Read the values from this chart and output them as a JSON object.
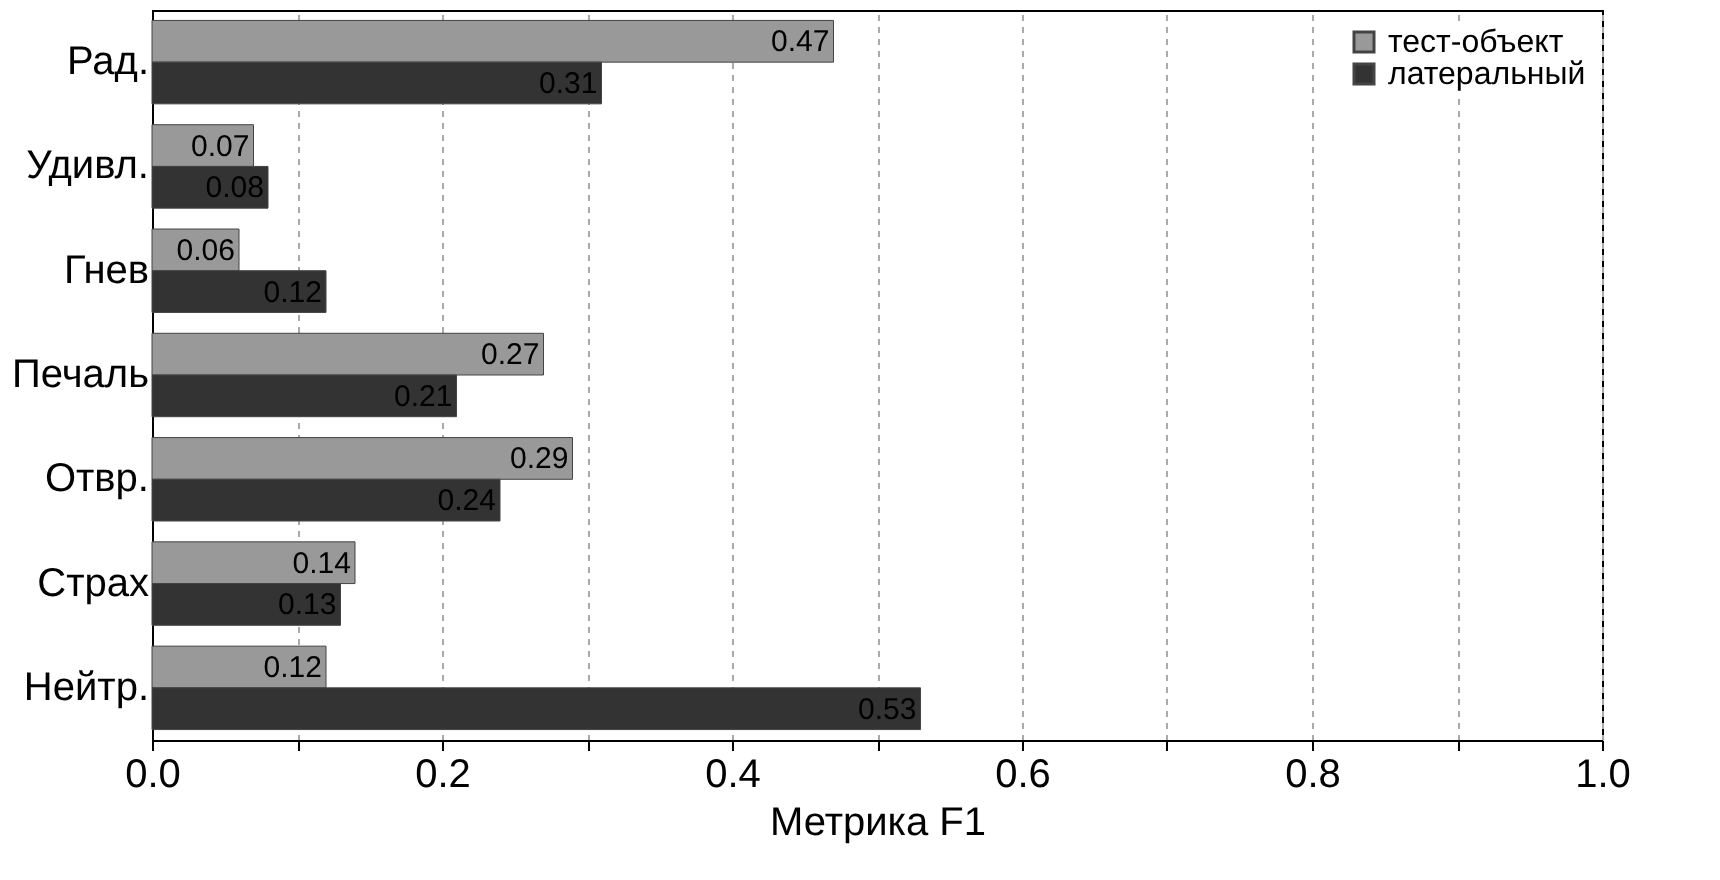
{
  "chart_data": {
    "type": "bar",
    "orientation": "horizontal",
    "xlabel": "Метрика F1",
    "categories": [
      "Рад.",
      "Удивл.",
      "Гнев",
      "Печаль",
      "Отвр.",
      "Страх",
      "Нейтр."
    ],
    "series": [
      {
        "name": "тест-объект",
        "color": "#999999",
        "values": [
          0.47,
          0.07,
          0.06,
          0.27,
          0.29,
          0.14,
          0.12
        ]
      },
      {
        "name": "латеральный",
        "color": "#333333",
        "values": [
          0.31,
          0.08,
          0.12,
          0.21,
          0.24,
          0.13,
          0.53
        ]
      }
    ],
    "xlim": [
      0,
      1
    ],
    "xticks": [
      {
        "value": 0,
        "label": "0.0"
      },
      {
        "value": 0.1,
        "label": null
      },
      {
        "value": 0.2,
        "label": "0.2"
      },
      {
        "value": 0.3,
        "label": null
      },
      {
        "value": 0.4,
        "label": "0.4"
      },
      {
        "value": 0.5,
        "label": null
      },
      {
        "value": 0.6,
        "label": "0.6"
      },
      {
        "value": 0.7,
        "label": null
      },
      {
        "value": 0.8,
        "label": "0.8"
      },
      {
        "value": 0.9,
        "label": null
      },
      {
        "value": 1,
        "label": "1.0"
      }
    ],
    "grid": true,
    "legend": "top right",
    "data_labels": true
  }
}
